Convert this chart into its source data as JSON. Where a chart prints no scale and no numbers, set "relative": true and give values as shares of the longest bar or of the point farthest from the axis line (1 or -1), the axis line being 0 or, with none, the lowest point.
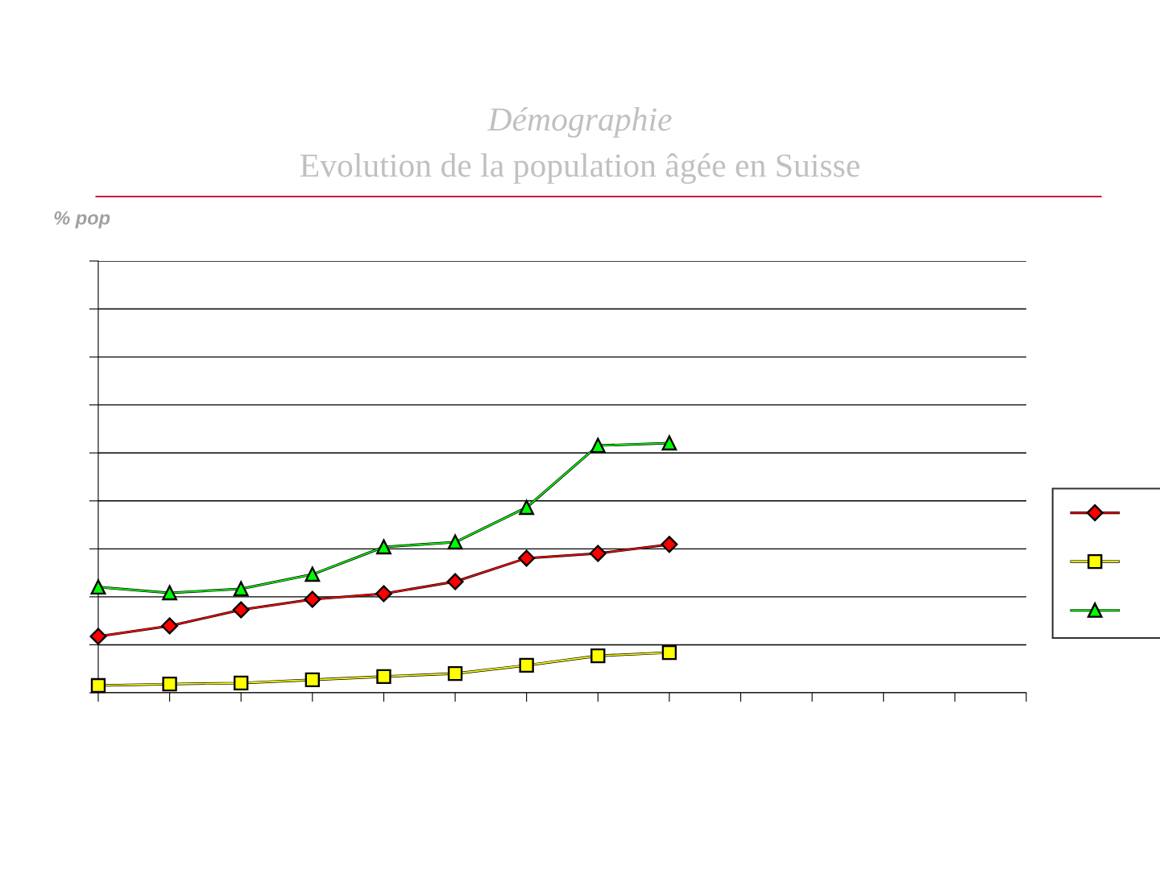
{
  "chart_data": {
    "type": "line",
    "title": "Démographie",
    "subtitle": "Evolution de la population âgée en Suisse",
    "annotations": [
      "% pop"
    ],
    "relative": true,
    "categories": [
      null,
      null,
      null,
      null,
      null,
      null,
      null,
      null,
      null,
      null,
      null,
      null,
      null,
      null
    ],
    "series": [
      {
        "color": "#ff0000",
        "marker": "diamond",
        "values": [
          0.226,
          0.268,
          0.332,
          0.374,
          0.397,
          0.445,
          0.539,
          0.558,
          0.594,
          null,
          null,
          null,
          null,
          null
        ]
      },
      {
        "color": "#ffff00",
        "marker": "square",
        "values": [
          0.029,
          0.035,
          0.039,
          0.052,
          0.065,
          0.077,
          0.11,
          0.148,
          0.161,
          null,
          null,
          null,
          null,
          null
        ]
      },
      {
        "color": "#00ff00",
        "marker": "triangle",
        "values": [
          0.423,
          0.4,
          0.416,
          0.474,
          0.584,
          0.603,
          0.742,
          0.99,
          1,
          null,
          null,
          null,
          null,
          null
        ]
      }
    ],
    "grid": "y",
    "line_style": "solid"
  }
}
